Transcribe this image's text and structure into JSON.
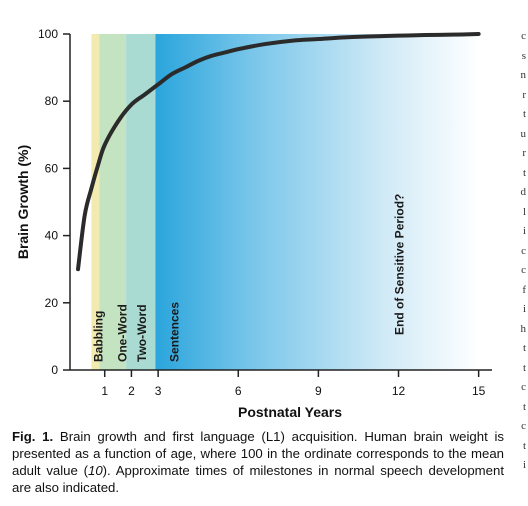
{
  "chart_data": {
    "type": "line",
    "xlabel": "Postnatal Years",
    "ylabel": "Brain Growth (%)",
    "xlim": [
      -0.3,
      15.5
    ],
    "ylim": [
      0,
      100
    ],
    "x_ticks": [
      1,
      2,
      3,
      6,
      9,
      12,
      15
    ],
    "y_ticks": [
      0,
      20,
      40,
      60,
      80,
      100
    ],
    "grid": false,
    "series": [
      {
        "x": [
          0,
          0.25,
          0.5,
          0.75,
          1,
          1.5,
          2,
          2.5,
          3,
          3.5,
          4,
          4.5,
          5,
          5.5,
          6,
          7,
          8,
          9,
          10,
          11,
          12,
          13,
          14,
          15
        ],
        "values": [
          30,
          46,
          54,
          61,
          67,
          74,
          79,
          82,
          85,
          88,
          90,
          92,
          93.5,
          94.5,
          95.5,
          97,
          98,
          98.5,
          99,
          99.3,
          99.5,
          99.7,
          99.8,
          100
        ],
        "color": "#2b2b2b"
      }
    ],
    "stages": [
      {
        "label": "Babbling",
        "start": 0.5,
        "end": 0.8,
        "color": "#f3eab0"
      },
      {
        "label": "One-Word",
        "start": 0.8,
        "end": 1.8,
        "color": "#c4e3c0"
      },
      {
        "label": "Two-Word",
        "start": 1.8,
        "end": 2.9,
        "color": "#a9dbd3"
      },
      {
        "label": "Sentences",
        "start": 2.9,
        "end": 15,
        "color": "#2aa5dc"
      }
    ],
    "annotation": {
      "label": "End of Sensitive Period?",
      "x": 12
    }
  },
  "caption": {
    "fig_label": "Fig. 1.",
    "text_before_ref": " Brain growth and first language (L1) acquisition. Human brain weight is presented as a function of age, where 100 in the ordinate corresponds to the mean adult value (",
    "ref": "10",
    "text_after_ref": "). Approximate times of milestones in normal speech development are also indicated."
  },
  "edge_fragments": [
    "c",
    "s",
    "n",
    "r",
    "t",
    "u",
    "r",
    "t",
    "d",
    "l",
    "i",
    "c",
    "c",
    "f",
    "i",
    "h",
    "t",
    "t",
    "c",
    "t",
    "c",
    "t",
    "i"
  ]
}
